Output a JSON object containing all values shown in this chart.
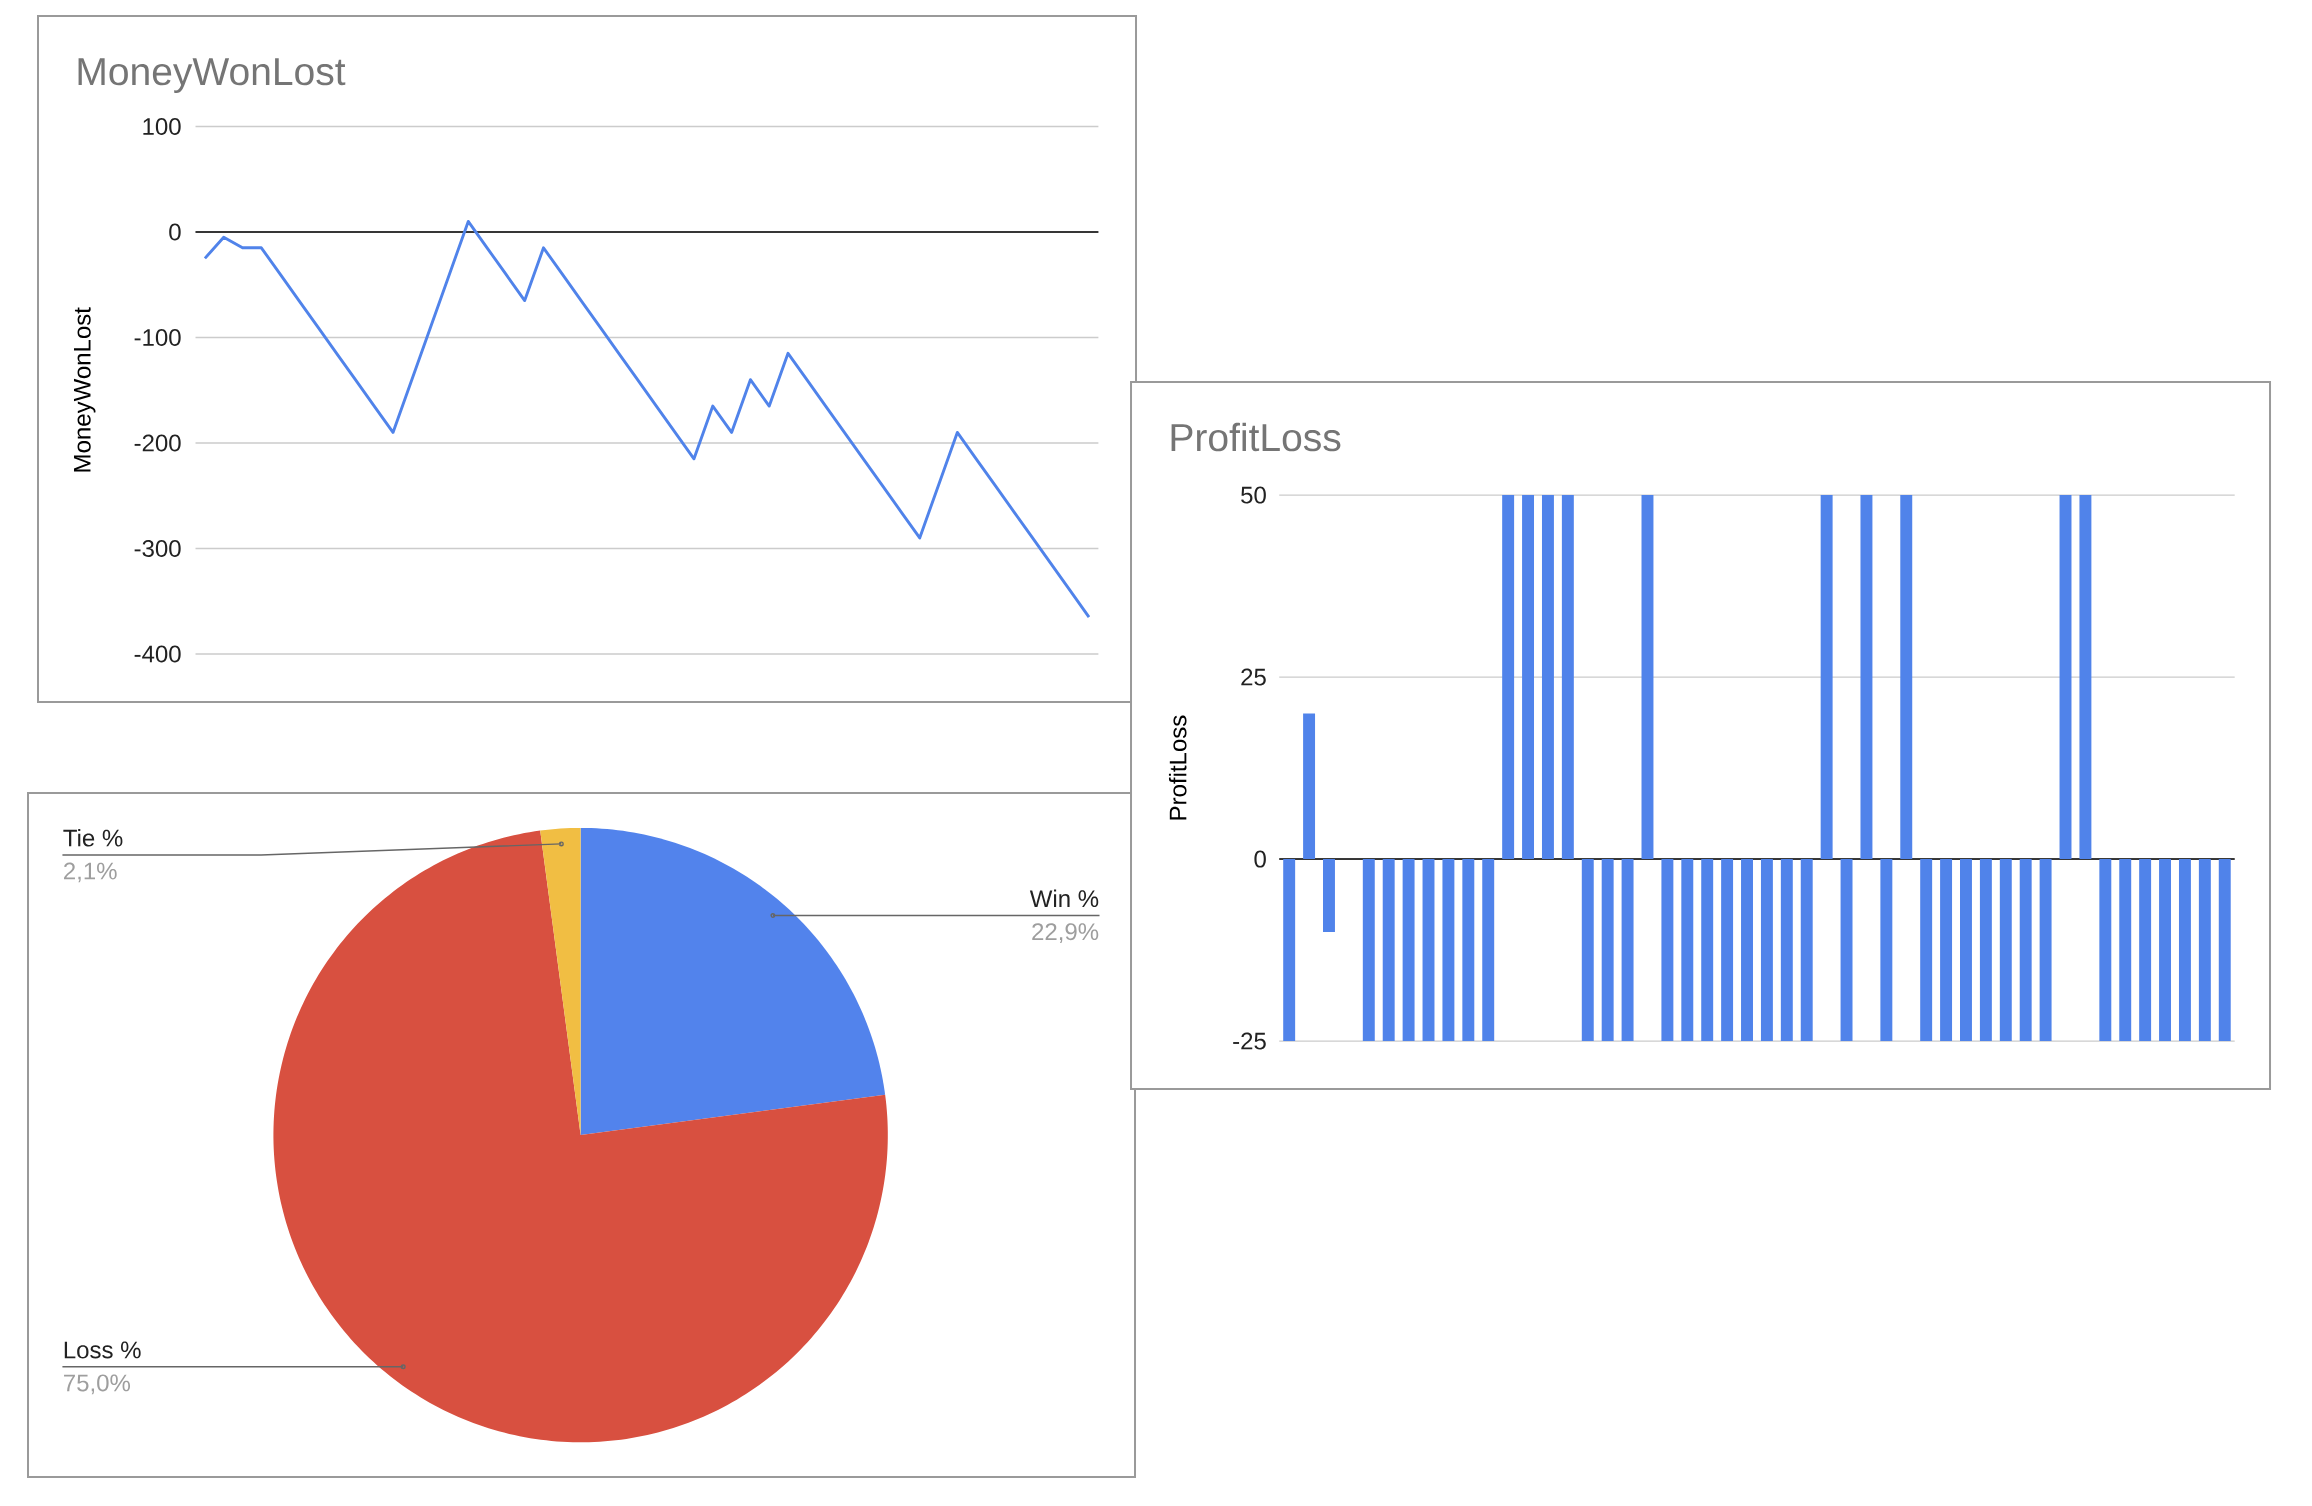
{
  "chart_data": [
    {
      "type": "line",
      "title": "MoneyWonLost",
      "ylabel": "MoneyWonLost",
      "categories": [
        null,
        null,
        null,
        null,
        null,
        null,
        null,
        null,
        null,
        null,
        null,
        null,
        null,
        null,
        null,
        null,
        null,
        null,
        null,
        null,
        null,
        null,
        null,
        null,
        null,
        null,
        null,
        null,
        null,
        null,
        null,
        null,
        null,
        null,
        null,
        null,
        null,
        null,
        null,
        null,
        null,
        null,
        null,
        null,
        null,
        null,
        null,
        null
      ],
      "values": [
        -25,
        -5,
        -15,
        -15,
        -40,
        -65,
        -90,
        -115,
        -140,
        -165,
        -190,
        -140,
        -90,
        -40,
        10,
        -15,
        -40,
        -65,
        -15,
        -40,
        -65,
        -90,
        -115,
        -140,
        -165,
        -190,
        -215,
        -165,
        -190,
        -140,
        -165,
        -115,
        -140,
        -165,
        -190,
        -215,
        -240,
        -265,
        -290,
        -240,
        -190,
        -215,
        -240,
        -265,
        -290,
        -315,
        -340,
        -365
      ],
      "color": "#5083ea",
      "ylim": [
        -400,
        100
      ],
      "yticks": [
        -400,
        -300,
        -200,
        -100,
        0,
        100
      ],
      "grid": "y"
    },
    {
      "type": "bar",
      "title": "ProfitLoss",
      "ylabel": "ProfitLoss",
      "categories": [
        null,
        null,
        null,
        null,
        null,
        null,
        null,
        null,
        null,
        null,
        null,
        null,
        null,
        null,
        null,
        null,
        null,
        null,
        null,
        null,
        null,
        null,
        null,
        null,
        null,
        null,
        null,
        null,
        null,
        null,
        null,
        null,
        null,
        null,
        null,
        null,
        null,
        null,
        null,
        null,
        null,
        null,
        null,
        null,
        null,
        null,
        null,
        null
      ],
      "values": [
        -25,
        20,
        -10,
        0,
        -25,
        -25,
        -25,
        -25,
        -25,
        -25,
        -25,
        50,
        50,
        50,
        50,
        -25,
        -25,
        -25,
        50,
        -25,
        -25,
        -25,
        -25,
        -25,
        -25,
        -25,
        -25,
        50,
        -25,
        50,
        -25,
        50,
        -25,
        -25,
        -25,
        -25,
        -25,
        -25,
        -25,
        50,
        50,
        -25,
        -25,
        -25,
        -25,
        -25,
        -25,
        -25
      ],
      "color": "#5083ea",
      "ylim": [
        -25,
        50
      ],
      "yticks": [
        -25,
        0,
        25,
        50
      ],
      "grid": "y"
    },
    {
      "type": "pie",
      "categories": [
        "Win %",
        "Loss %",
        "Tie %"
      ],
      "values": [
        22.9,
        75.0,
        2.1
      ],
      "colors": [
        "#5283ec",
        "#d85040",
        "#f1be43"
      ],
      "value_labels": [
        "22,9%",
        "75,0%",
        "2,1%"
      ]
    }
  ]
}
